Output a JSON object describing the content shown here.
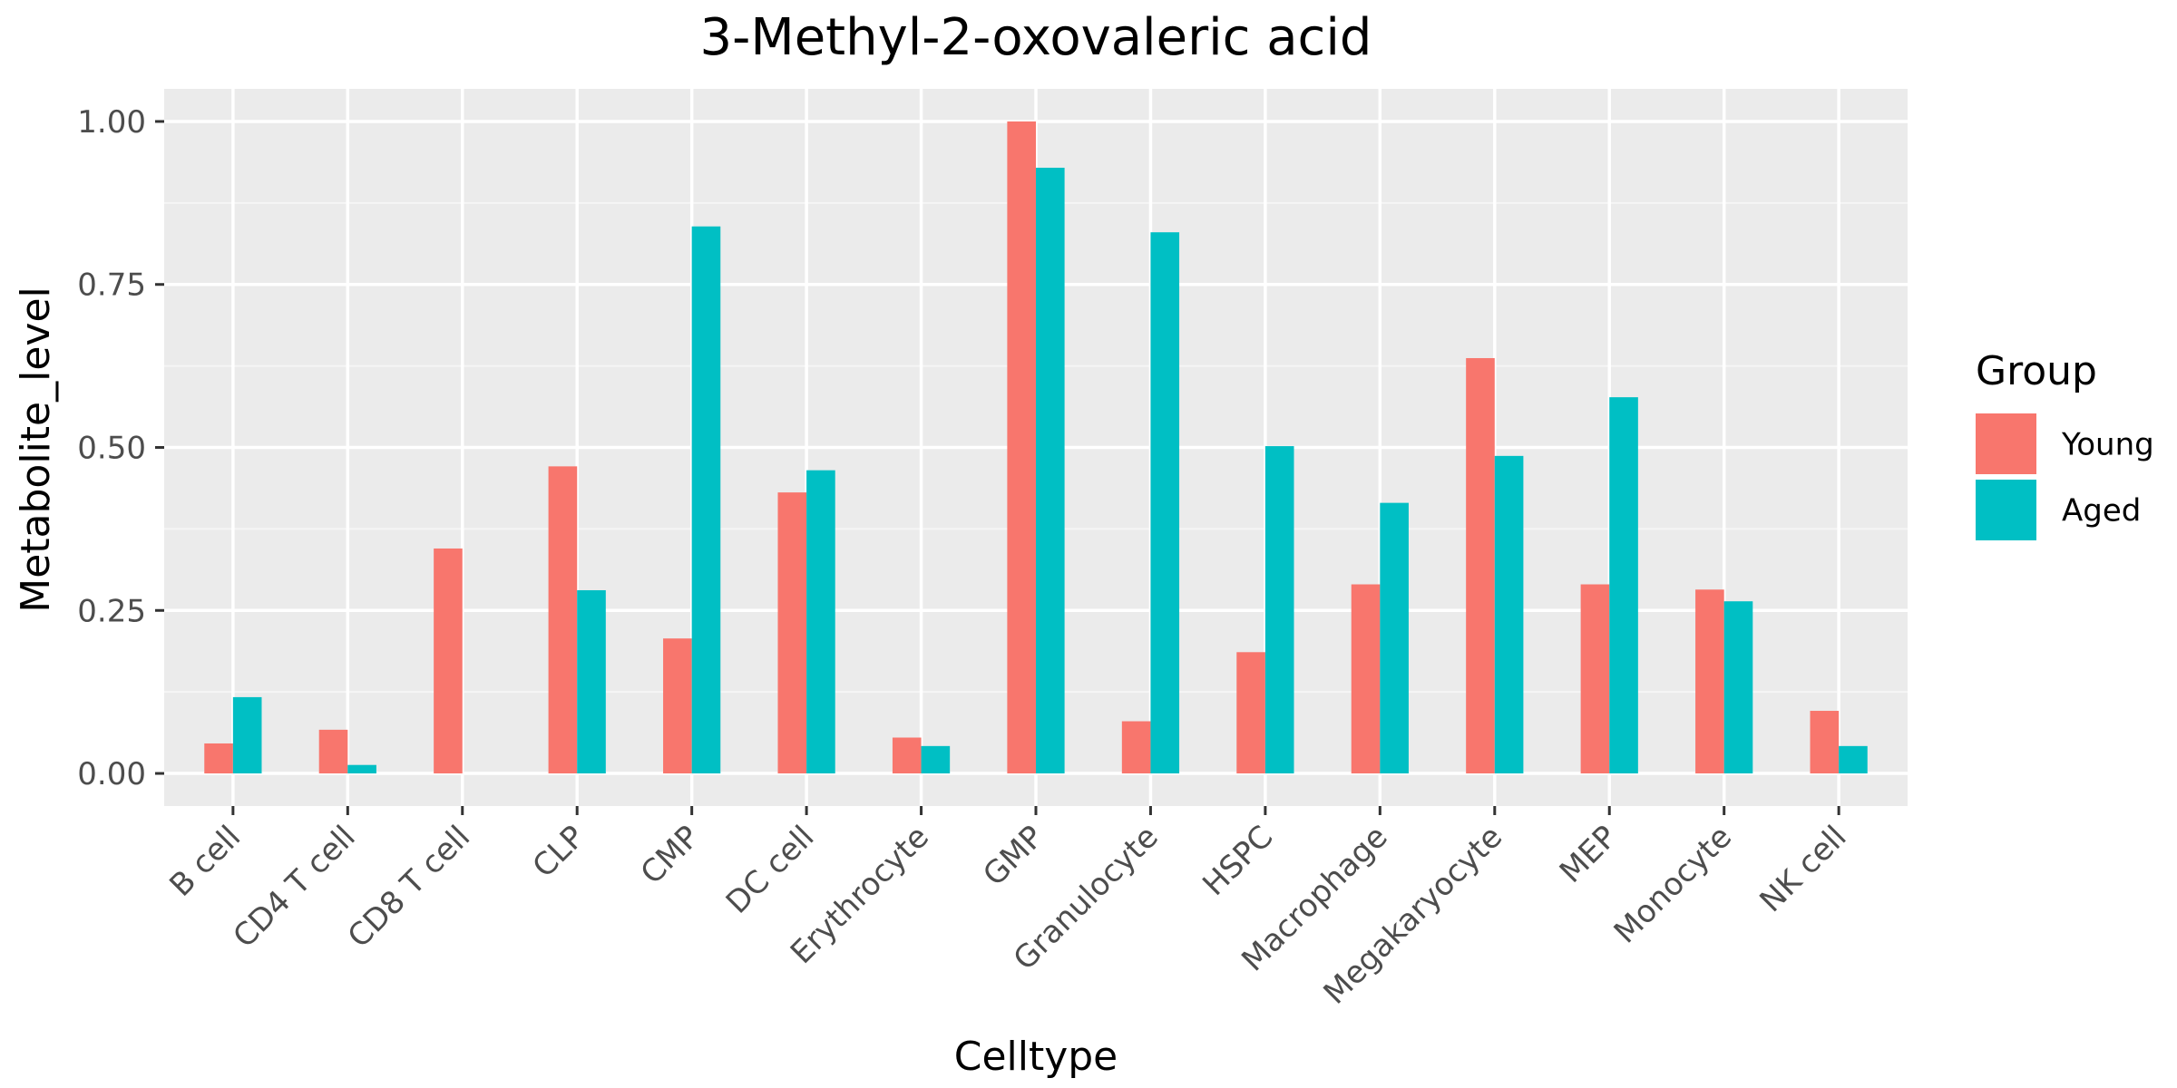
{
  "chart_data": {
    "type": "bar",
    "title": "3-Methyl-2-oxovaleric acid",
    "xlabel": "Celltype",
    "ylabel": "Metabolite_level",
    "ylim": [
      -0.05,
      1.05
    ],
    "yticks": [
      0.0,
      0.25,
      0.5,
      0.75,
      1.0
    ],
    "ytick_labels": [
      "0.00",
      "0.25",
      "0.50",
      "0.75",
      "1.00"
    ],
    "grid": true,
    "legend_position": "right",
    "legend_title": "Group",
    "categories": [
      "B cell",
      "CD4 T cell",
      "CD8 T cell",
      "CLP",
      "CMP",
      "DC cell",
      "Erythrocyte",
      "GMP",
      "Granulocyte",
      "HSPC",
      "Macrophage",
      "Megakaryocyte",
      "MEP",
      "Monocyte",
      "NK cell"
    ],
    "series": [
      {
        "name": "Young",
        "color": "#F8766D",
        "values": [
          0.046,
          0.067,
          0.345,
          0.471,
          0.207,
          0.431,
          0.055,
          1.0,
          0.08,
          0.186,
          0.29,
          0.637,
          0.29,
          0.282,
          0.096
        ]
      },
      {
        "name": "Aged",
        "color": "#00BFC4",
        "values": [
          0.117,
          0.013,
          0.0,
          0.281,
          0.839,
          0.465,
          0.042,
          0.929,
          0.83,
          0.502,
          0.415,
          0.487,
          0.577,
          0.264,
          0.042
        ]
      }
    ]
  },
  "colors": {
    "panel_background": "#EBEBEB",
    "grid_major": "#FFFFFF",
    "grid_minor": "#F5F5F5"
  }
}
